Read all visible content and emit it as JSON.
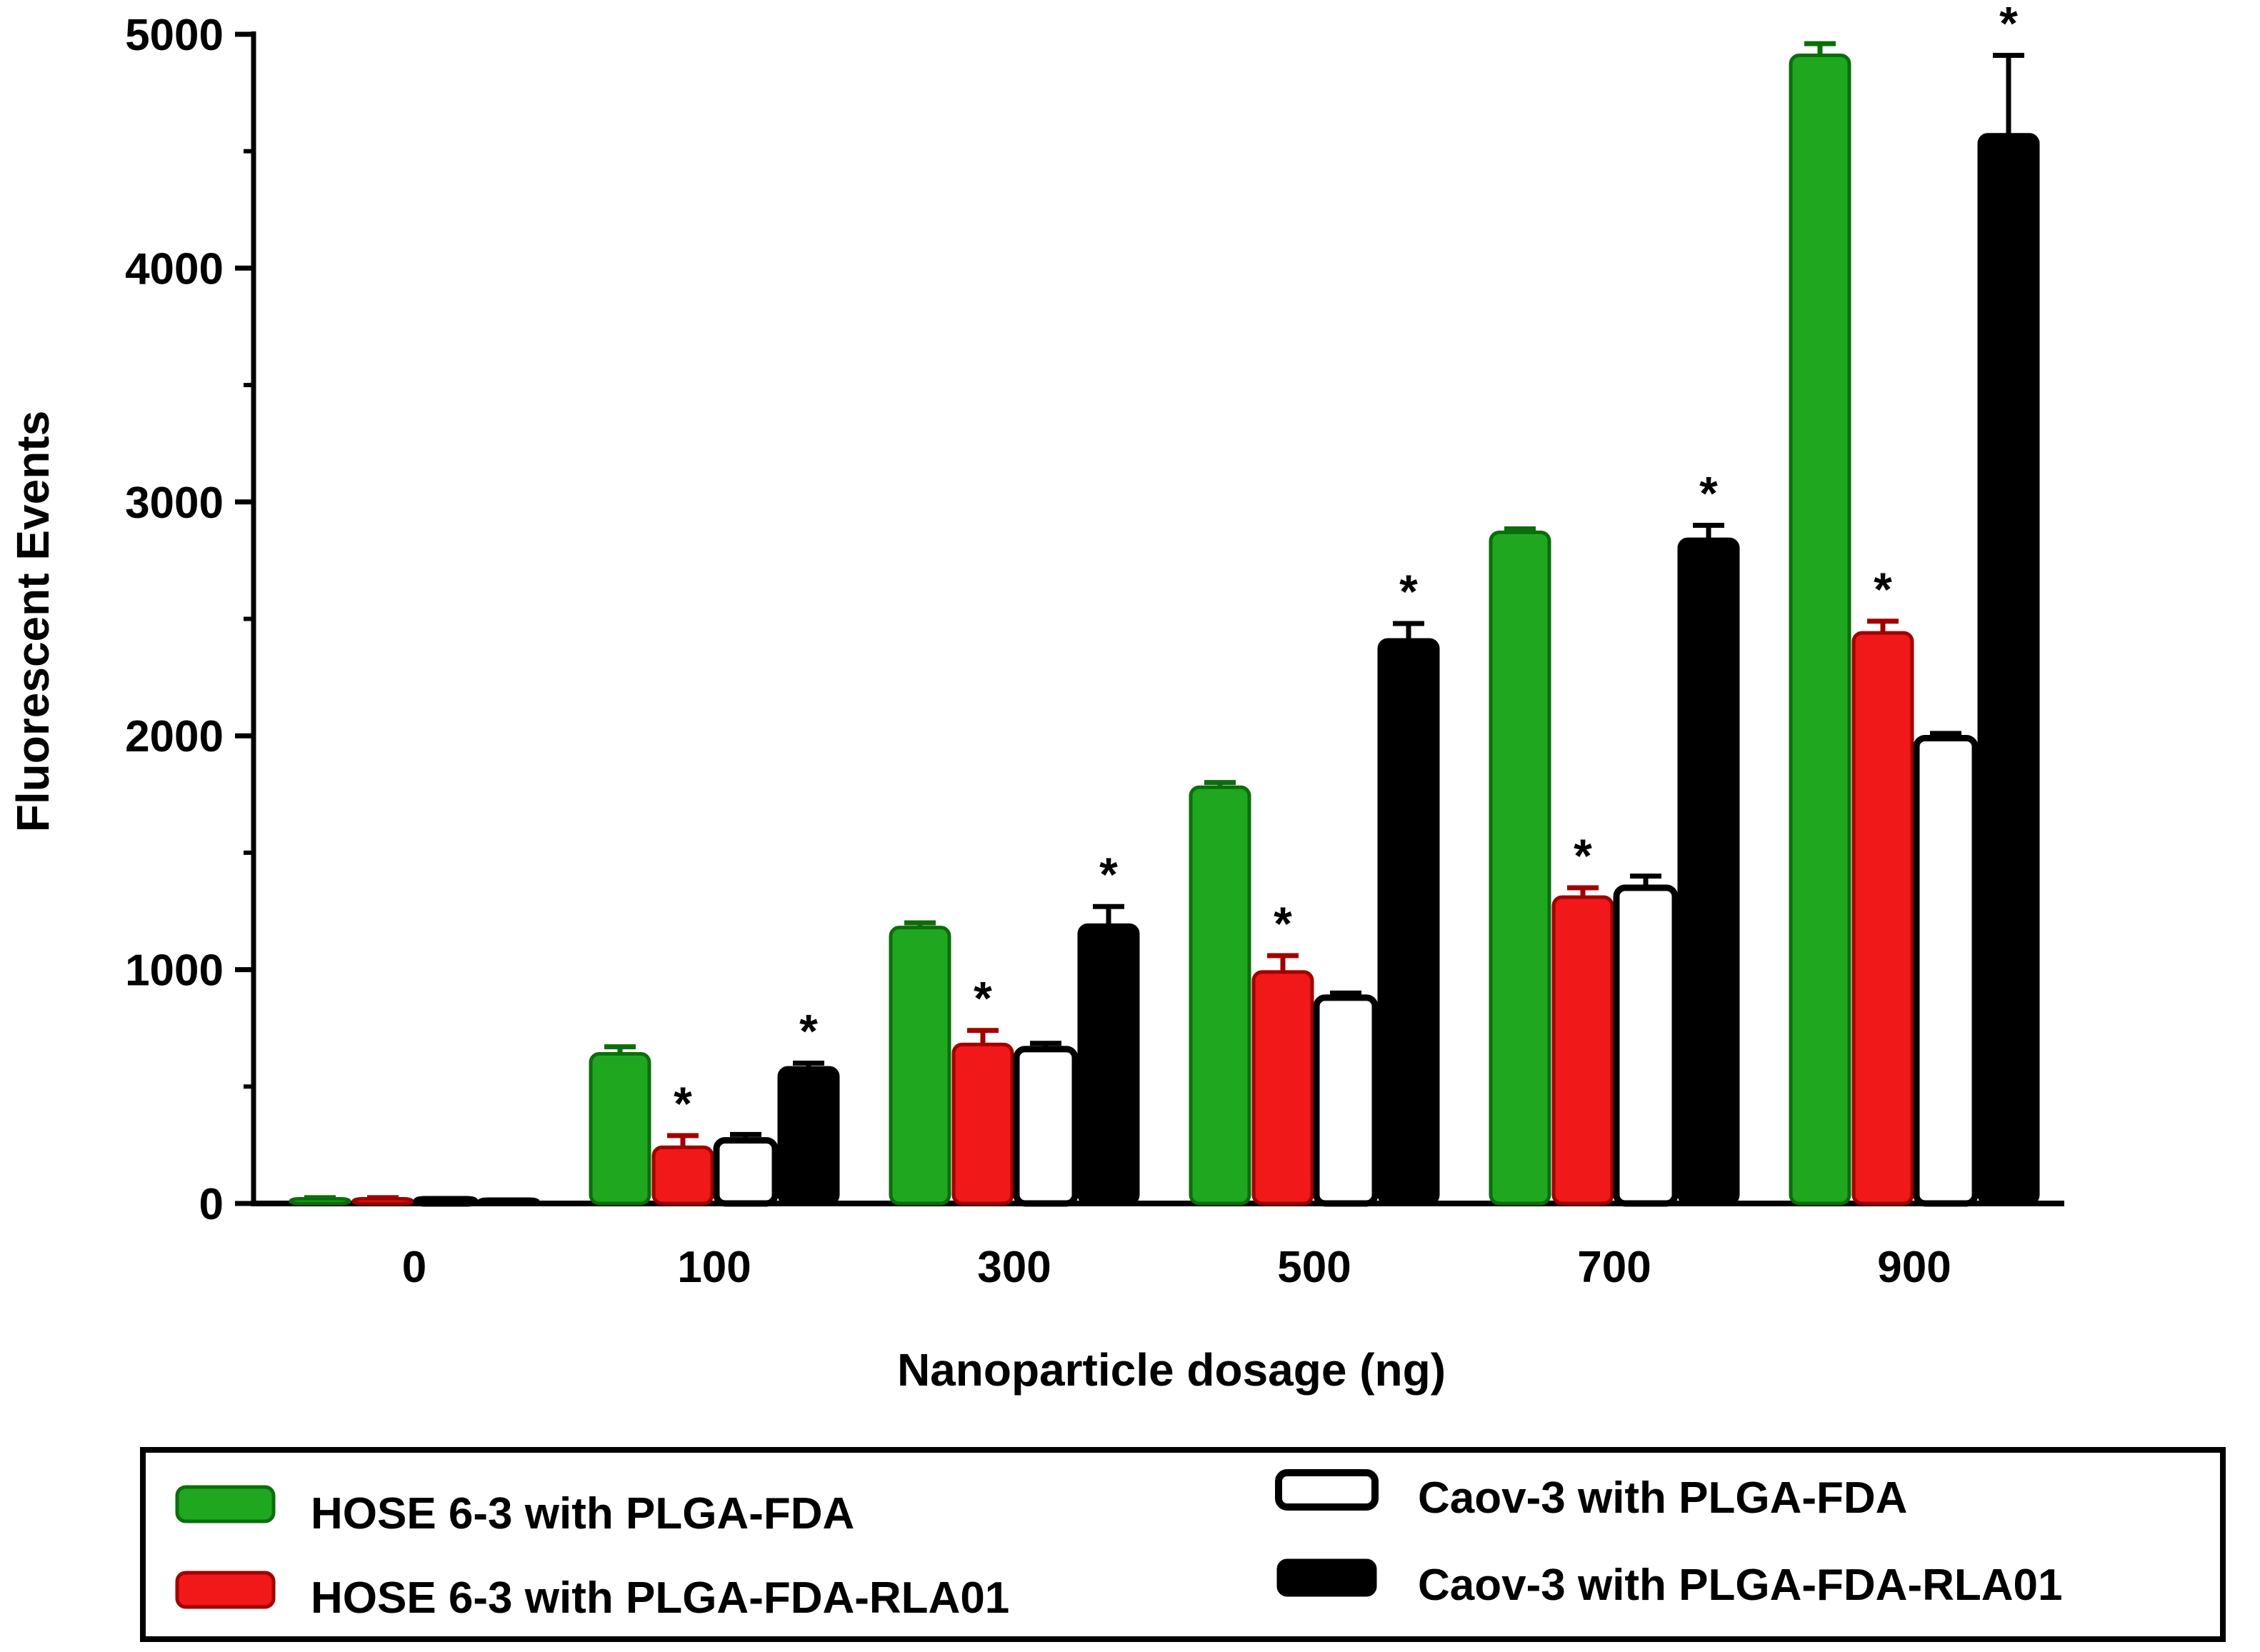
{
  "chart_data": {
    "type": "bar",
    "title": "",
    "xlabel": "Nanoparticle dosage (ng)",
    "ylabel": "Fluorescent Events",
    "categories": [
      "0",
      "100",
      "300",
      "500",
      "700",
      "900"
    ],
    "ylim": [
      0,
      5000
    ],
    "yticks": [
      0,
      1000,
      2000,
      3000,
      4000,
      5000
    ],
    "grid": false,
    "legend_position": "bottom",
    "series": [
      {
        "name": "HOSE 6-3 with  PLGA-FDA",
        "color": "#1fa81f",
        "edge": "#0b6e0b",
        "fill_style": "solid",
        "values": [
          20,
          640,
          1180,
          1780,
          2870,
          4910
        ],
        "errors": [
          5,
          30,
          20,
          20,
          15,
          50
        ],
        "significant": [
          false,
          false,
          false,
          false,
          false,
          false
        ]
      },
      {
        "name": "HOSE 6-3 with PLGA-FDA-RLA01",
        "color": "#f01818",
        "edge": "#a00000",
        "fill_style": "solid",
        "values": [
          20,
          240,
          680,
          990,
          1310,
          2440
        ],
        "errors": [
          5,
          50,
          60,
          70,
          40,
          50
        ],
        "significant": [
          false,
          true,
          true,
          true,
          true,
          true
        ]
      },
      {
        "name": "Caov-3 with PLGA-FDA",
        "color": "#ffffff",
        "edge": "#000000",
        "fill_style": "open",
        "values": [
          10,
          270,
          660,
          880,
          1350,
          1990
        ],
        "errors": [
          5,
          25,
          25,
          20,
          50,
          20
        ],
        "significant": [
          false,
          false,
          false,
          false,
          false,
          false
        ]
      },
      {
        "name": "Caov-3 with PLGA-FDA-RLA01",
        "color": "#000000",
        "edge": "#000000",
        "fill_style": "solid",
        "values": [
          10,
          580,
          1190,
          2410,
          2840,
          4570
        ],
        "errors": [
          5,
          20,
          80,
          70,
          60,
          340
        ],
        "significant": [
          false,
          true,
          true,
          true,
          true,
          true
        ]
      }
    ],
    "significance_marker": "*"
  }
}
